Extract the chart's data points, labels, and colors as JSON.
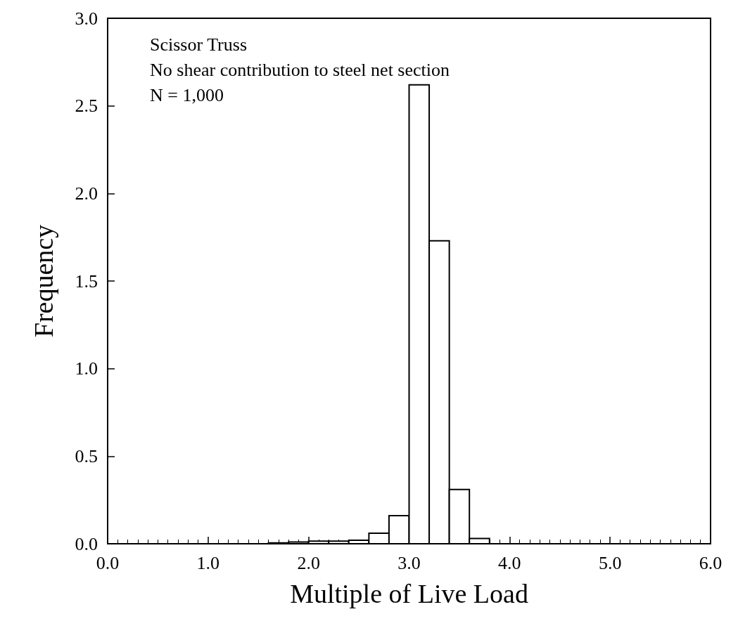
{
  "chart_data": {
    "type": "histogram",
    "xlabel": "Multiple of Live Load",
    "ylabel": "Frequency",
    "annotations": [
      "Scissor Truss",
      "No shear contribution to steel net section",
      "N = 1,000"
    ],
    "bins": [
      1.6,
      1.8,
      2.0,
      2.2,
      2.4,
      2.6,
      2.8,
      3.0,
      3.2,
      3.4,
      3.6,
      3.8
    ],
    "values": [
      0.005,
      0.01,
      0.015,
      0.015,
      0.02,
      0.06,
      0.16,
      2.62,
      1.73,
      0.31,
      0.03
    ],
    "color": "#ffffff",
    "xlim": [
      0,
      6
    ],
    "xticks": [
      {
        "value": 0,
        "label": "0.0"
      },
      {
        "value": 1,
        "label": "1.0"
      },
      {
        "value": 2,
        "label": "2.0"
      },
      {
        "value": 3,
        "label": "3.0"
      },
      {
        "value": 4,
        "label": "4.0"
      },
      {
        "value": 5,
        "label": "5.0"
      },
      {
        "value": 6,
        "label": "6.0"
      }
    ],
    "ylim": [
      0,
      3
    ],
    "yticks": [
      {
        "value": 0,
        "label": "0.0"
      },
      {
        "value": 0.5,
        "label": "0.5"
      },
      {
        "value": 1,
        "label": "1.0"
      },
      {
        "value": 1.5,
        "label": "1.5"
      },
      {
        "value": 2,
        "label": "2.0"
      },
      {
        "value": 2.5,
        "label": "2.5"
      },
      {
        "value": 3,
        "label": "3.0"
      }
    ],
    "grid": false
  }
}
